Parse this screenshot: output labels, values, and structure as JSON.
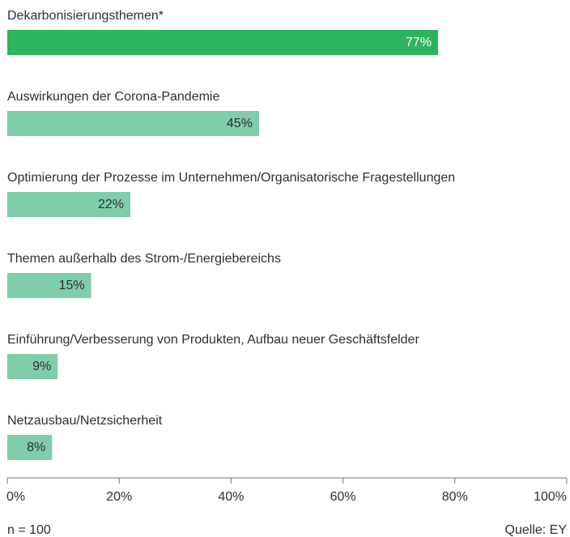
{
  "chart_data": {
    "type": "hbar",
    "categories": [
      "Dekarbonisierungsthemen*",
      "Auswirkungen der Corona-Pandemie",
      "Optimierung der Prozesse im Unternehmen/Organisatorische Fragestellungen",
      "Themen außerhalb des Strom-/Energiebereichs",
      "Einführung/Verbesserung von Produkten, Aufbau neuer Geschäftsfelder",
      "Netzausbau/Netzsicherheit"
    ],
    "values": [
      77,
      45,
      22,
      15,
      9,
      8
    ],
    "value_labels": [
      "77%",
      "45%",
      "22%",
      "15%",
      "9%",
      "8%"
    ],
    "colors": [
      "#2db55d",
      "#7fcdaa",
      "#7fcdaa",
      "#7fcdaa",
      "#7fcdaa",
      "#7fcdaa"
    ],
    "xlim": [
      0,
      100
    ],
    "xticks": [
      {
        "value": 0,
        "label": "0%"
      },
      {
        "value": 20,
        "label": "20%"
      },
      {
        "value": 40,
        "label": "40%"
      },
      {
        "value": 60,
        "label": "60%"
      },
      {
        "value": 80,
        "label": "80%"
      },
      {
        "value": 100,
        "label": "100%"
      }
    ],
    "note": "n = 100",
    "source": "Quelle: EY"
  }
}
